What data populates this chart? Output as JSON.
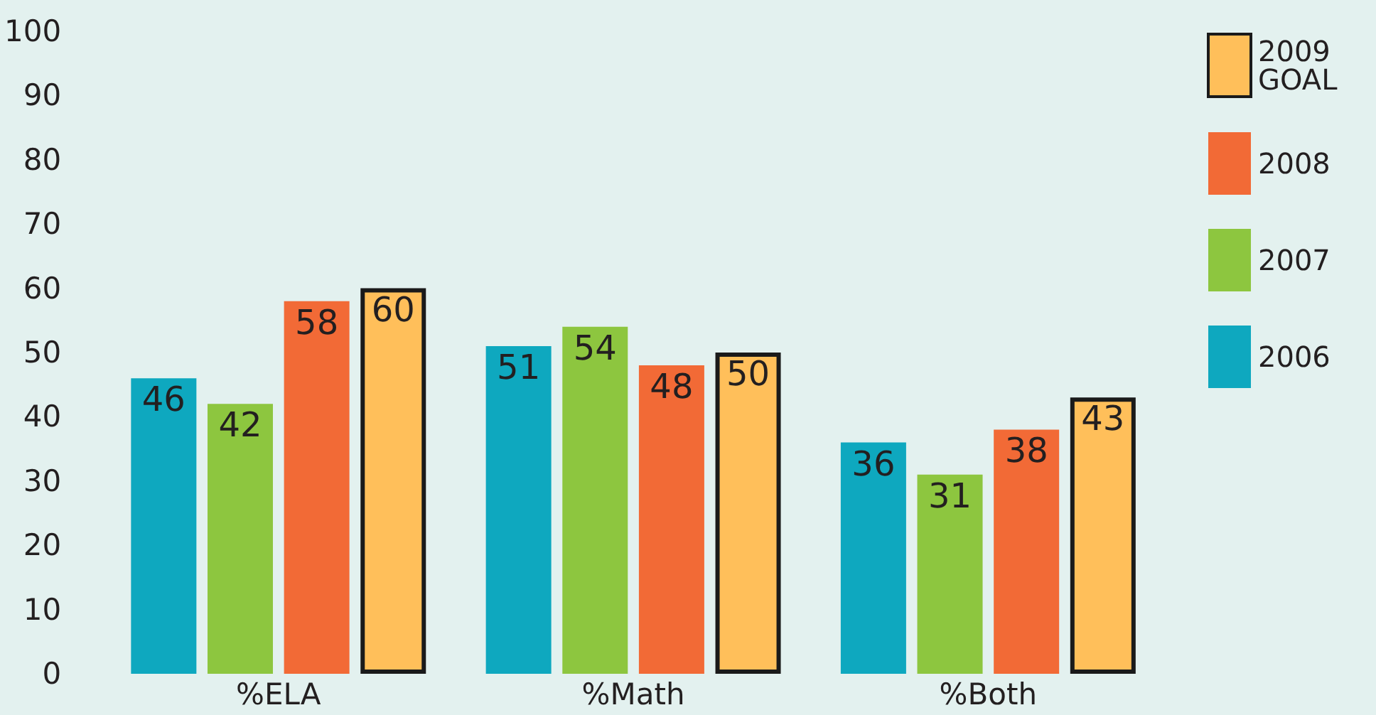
{
  "chart_data": {
    "type": "bar",
    "categories": [
      "%ELA",
      "%Math",
      "%Both"
    ],
    "series": [
      {
        "name": "2006",
        "color": "#0ea8bf",
        "values": [
          46,
          51,
          36
        ]
      },
      {
        "name": "2007",
        "color": "#8dc63f",
        "values": [
          42,
          54,
          31
        ]
      },
      {
        "name": "2008",
        "color": "#f26a36",
        "values": [
          58,
          48,
          38
        ]
      },
      {
        "name": "2009 GOAL",
        "color": "#ffbf5a",
        "values": [
          60,
          50,
          43
        ]
      }
    ],
    "ylim": [
      0,
      100
    ],
    "yticks": [
      0,
      10,
      20,
      30,
      40,
      50,
      60,
      70,
      80,
      90,
      100
    ],
    "grid": false,
    "legend": "right",
    "data_labels": true
  }
}
